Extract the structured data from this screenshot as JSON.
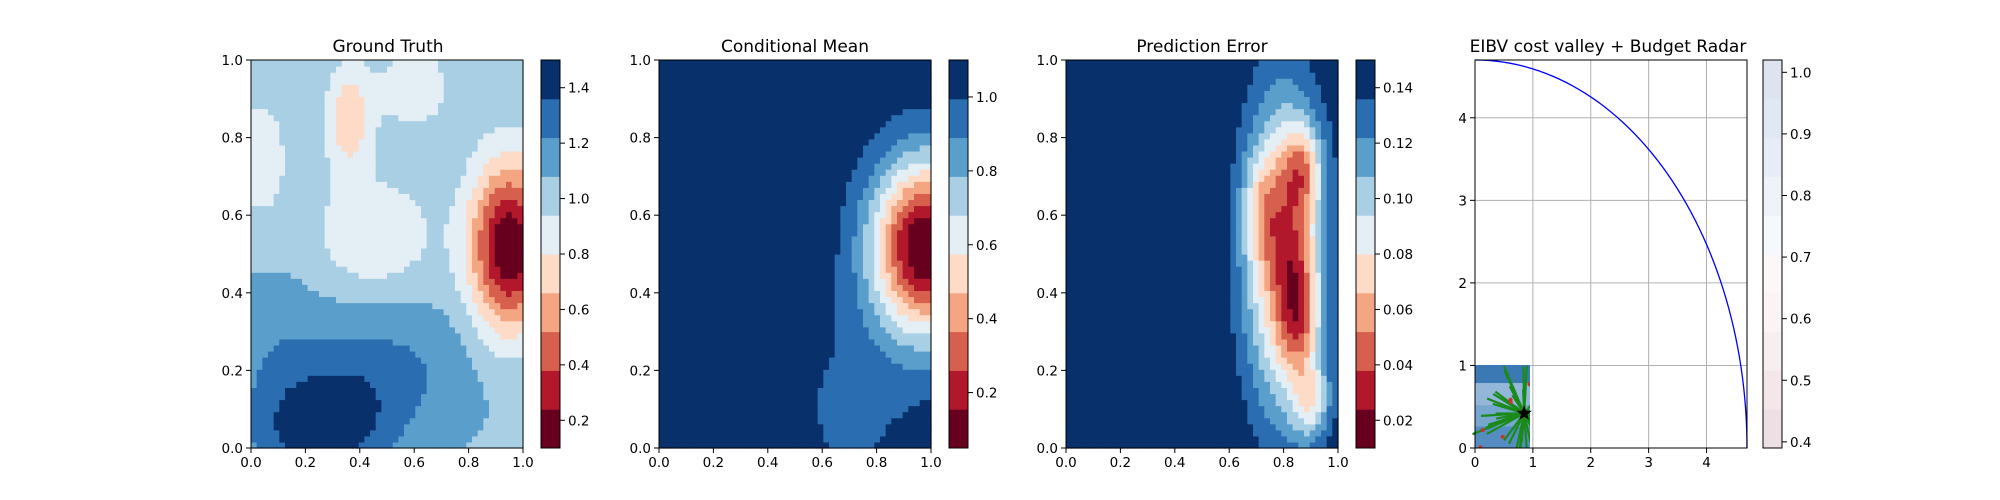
{
  "figure": {
    "panels": [
      {
        "title": "Ground Truth"
      },
      {
        "title": "Conditional Mean"
      },
      {
        "title": "Prediction Error"
      },
      {
        "title": "EIBV cost valley + Budget Radar"
      }
    ]
  },
  "chart_data": [
    {
      "type": "heatmap",
      "title": "Ground Truth",
      "xlabel": "",
      "ylabel": "",
      "xlim": [
        0,
        1
      ],
      "ylim": [
        0,
        1
      ],
      "xticks": [
        "0.0",
        "0.2",
        "0.4",
        "0.6",
        "0.8",
        "1.0"
      ],
      "yticks": [
        "0.0",
        "0.2",
        "0.4",
        "0.6",
        "0.8",
        "1.0"
      ],
      "colormap": "RdBu",
      "colorbar": {
        "range": [
          0.1,
          1.5
        ],
        "ticks": [
          "0.2",
          "0.4",
          "0.6",
          "0.8",
          "1.0",
          "1.2",
          "1.4"
        ],
        "levels": 10
      },
      "field": {
        "base": 1.05,
        "gaussians": [
          {
            "x": 0.95,
            "y": 0.52,
            "sx": 0.1,
            "sy": 0.15,
            "a": -0.95
          },
          {
            "x": 0.36,
            "y": 0.85,
            "sx": 0.06,
            "sy": 0.1,
            "a": -0.35
          },
          {
            "x": 0.6,
            "y": 0.93,
            "sx": 0.1,
            "sy": 0.08,
            "a": -0.2
          },
          {
            "x": 0.25,
            "y": 0.05,
            "sx": 0.18,
            "sy": 0.1,
            "a": 0.4
          },
          {
            "x": 0.48,
            "y": 0.2,
            "sx": 0.25,
            "sy": 0.12,
            "a": 0.2
          },
          {
            "x": 0.05,
            "y": 0.3,
            "sx": 0.15,
            "sy": 0.12,
            "a": 0.1
          },
          {
            "x": 0.03,
            "y": 0.75,
            "sx": 0.08,
            "sy": 0.12,
            "a": -0.2
          },
          {
            "x": 0.45,
            "y": 0.55,
            "sx": 0.15,
            "sy": 0.1,
            "a": -0.25
          }
        ]
      }
    },
    {
      "type": "heatmap",
      "title": "Conditional Mean",
      "xlabel": "",
      "ylabel": "",
      "xlim": [
        0,
        1
      ],
      "ylim": [
        0,
        1
      ],
      "xticks": [
        "0.0",
        "0.2",
        "0.4",
        "0.6",
        "0.8",
        "1.0"
      ],
      "yticks": [
        "0.0",
        "0.2",
        "0.4",
        "0.6",
        "0.8",
        "1.0"
      ],
      "colormap": "RdBu",
      "colorbar": {
        "range": [
          0.05,
          1.1
        ],
        "ticks": [
          "0.2",
          "0.4",
          "0.6",
          "0.8",
          "1.0"
        ],
        "levels": 10
      },
      "field": {
        "base": 1.08,
        "gaussians": [
          {
            "x": 0.98,
            "y": 0.52,
            "sx": 0.14,
            "sy": 0.16,
            "a": -1.05
          },
          {
            "x": 0.7,
            "y": 0.1,
            "sx": 0.2,
            "sy": 0.2,
            "a": -0.1
          }
        ]
      }
    },
    {
      "type": "heatmap",
      "title": "Prediction Error",
      "xlabel": "",
      "ylabel": "",
      "xlim": [
        0,
        1
      ],
      "ylim": [
        0,
        1
      ],
      "xticks": [
        "0.0",
        "0.2",
        "0.4",
        "0.6",
        "0.8",
        "1.0"
      ],
      "yticks": [
        "0.0",
        "0.2",
        "0.4",
        "0.6",
        "0.8",
        "1.0"
      ],
      "colormap": "RdBu",
      "colorbar": {
        "range": [
          0.01,
          0.15
        ],
        "ticks": [
          "0.02",
          "0.04",
          "0.06",
          "0.08",
          "0.10",
          "0.12",
          "0.14"
        ],
        "levels": 10
      },
      "field": {
        "base": 0.15,
        "gaussians": [
          {
            "x": 0.8,
            "y": 0.5,
            "sx": 0.1,
            "sy": 0.28,
            "a": -0.1
          },
          {
            "x": 0.87,
            "y": 0.72,
            "sx": 0.05,
            "sy": 0.08,
            "a": -0.05
          },
          {
            "x": 0.86,
            "y": 0.3,
            "sx": 0.05,
            "sy": 0.08,
            "a": -0.04
          },
          {
            "x": 0.9,
            "y": 0.12,
            "sx": 0.05,
            "sy": 0.07,
            "a": -0.05
          },
          {
            "x": 0.72,
            "y": 0.62,
            "sx": 0.05,
            "sy": 0.1,
            "a": -0.03
          },
          {
            "x": 0.85,
            "y": 0.45,
            "sx": 0.05,
            "sy": 0.1,
            "a": -0.03
          }
        ]
      }
    },
    {
      "type": "heatmap",
      "title": "EIBV cost valley + Budget Radar",
      "xlabel": "",
      "ylabel": "",
      "xlim": [
        0,
        4.7
      ],
      "ylim": [
        0,
        4.7
      ],
      "xticks": [
        0,
        1,
        2,
        3,
        4
      ],
      "yticks": [
        0,
        1,
        2,
        3,
        4
      ],
      "grid": true,
      "colorbar": {
        "range": [
          0.39,
          1.02
        ],
        "ticks": [
          "0.4",
          "0.5",
          "0.6",
          "0.7",
          "0.8",
          "0.9",
          "1.0"
        ],
        "levels": 10
      },
      "budget_radar": {
        "radius": 4.7,
        "color": "#0000ff"
      },
      "cost_valley_region": {
        "x": [
          0,
          1.05
        ],
        "y": [
          0,
          1.05
        ]
      },
      "current_location": {
        "x": 0.85,
        "y": 0.42,
        "marker": "star"
      },
      "colors": {
        "radar": "#0000ff",
        "paths": "#1a8a1a",
        "marker": "#000000"
      }
    }
  ]
}
